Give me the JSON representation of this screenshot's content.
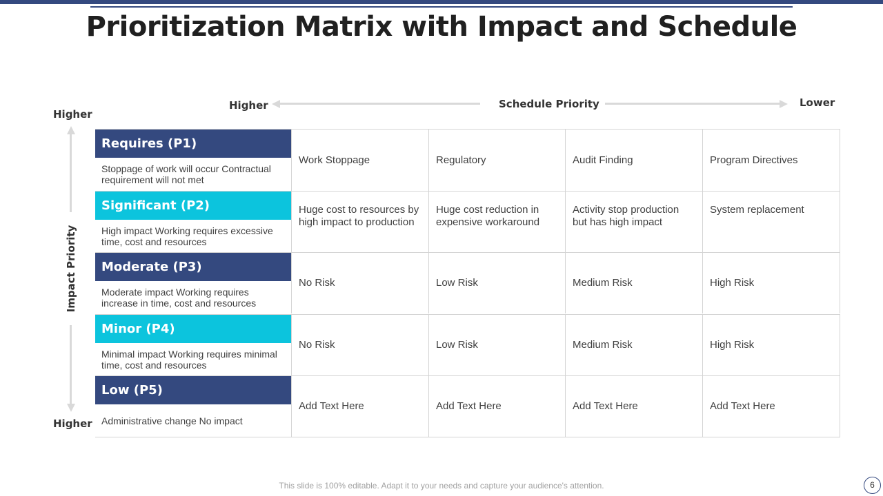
{
  "title": "Prioritization Matrix with Impact and Schedule",
  "schedule_axis": {
    "label": "Schedule Priority",
    "left_end": "Higher",
    "right_end": "Lower"
  },
  "impact_axis": {
    "label": "Impact Priority",
    "top_end": "Higher",
    "bottom_end": "Higher"
  },
  "colors": {
    "navy": "#34497f",
    "cyan": "#0cc4dd"
  },
  "rows": [
    {
      "label": "Requires (P1)",
      "color": "navy",
      "desc": "Stoppage of work will occur Contractual requirement will not met",
      "cells": [
        "Work Stoppage",
        "Regulatory",
        "Audit Finding",
        "Program Directives"
      ]
    },
    {
      "label": "Significant (P2)",
      "color": "cyan",
      "desc": "High impact  Working requires excessive time, cost and resources",
      "cells": [
        "Huge cost to resources by high impact to production",
        "Huge cost reduction in expensive workaround",
        "Activity stop production but has high impact",
        "System replacement"
      ]
    },
    {
      "label": "Moderate  (P3)",
      "color": "navy",
      "desc": "Moderate impact Working requires increase in time, cost and  resources",
      "cells": [
        "No Risk",
        "Low Risk",
        "Medium Risk",
        "High Risk"
      ]
    },
    {
      "label": "Minor (P4)",
      "color": "cyan",
      "desc": "Minimal impact Working requires minimal time, cost and  resources",
      "cells": [
        "No Risk",
        "Low Risk",
        "Medium Risk",
        "High Risk"
      ]
    },
    {
      "label": "Low (P5)",
      "color": "navy",
      "desc": "Administrative change No impact",
      "cells": [
        "Add Text Here",
        "Add Text Here",
        "Add Text Here",
        "Add Text Here"
      ]
    }
  ],
  "footer": "This slide is 100% editable. Adapt it to your needs and capture your audience's attention.",
  "page_number": "6"
}
